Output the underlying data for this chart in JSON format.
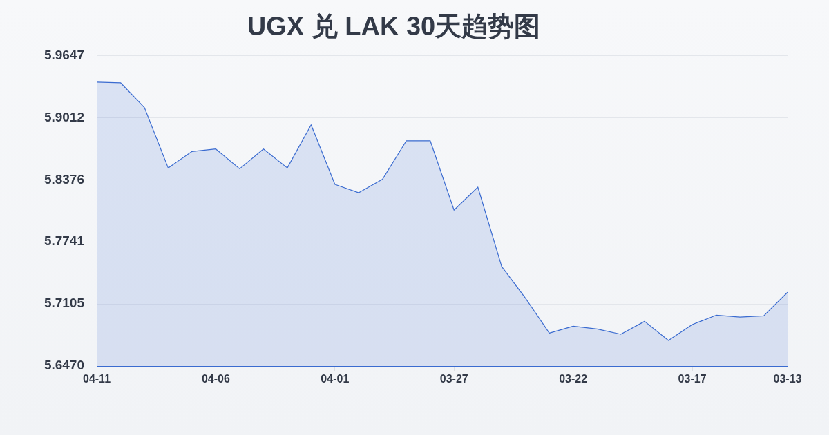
{
  "chart_data": {
    "type": "area",
    "title": "UGX 兑 LAK 30天趋势图",
    "categories": [
      "04-11",
      null,
      null,
      null,
      null,
      "04-06",
      null,
      null,
      null,
      null,
      "04-01",
      null,
      null,
      null,
      null,
      "03-27",
      null,
      null,
      null,
      null,
      "03-22",
      null,
      null,
      null,
      null,
      "03-17",
      null,
      null,
      null,
      "03-13"
    ],
    "series": [
      {
        "color": "#3a6bd0",
        "values": [
          5.9377,
          5.937,
          5.9117,
          5.8498,
          5.8666,
          5.8692,
          5.8489,
          5.8692,
          5.8498,
          5.8939,
          5.8329,
          5.8244,
          5.8383,
          5.8776,
          5.8776,
          5.8066,
          5.8301,
          5.7489,
          5.7164,
          5.6807,
          5.6877,
          5.6849,
          5.6795,
          5.6927,
          5.6731,
          5.6894,
          5.699,
          5.6971,
          5.6983,
          5.7225
        ]
      }
    ],
    "ylim": [
      5.647,
      5.9647
    ],
    "yticks": [
      {
        "value": 5.647,
        "label": "5.6470"
      },
      5.7105,
      5.7741,
      5.8376,
      5.9012,
      5.9647
    ],
    "grid": "y",
    "marker": "none",
    "line_style": "solid"
  }
}
